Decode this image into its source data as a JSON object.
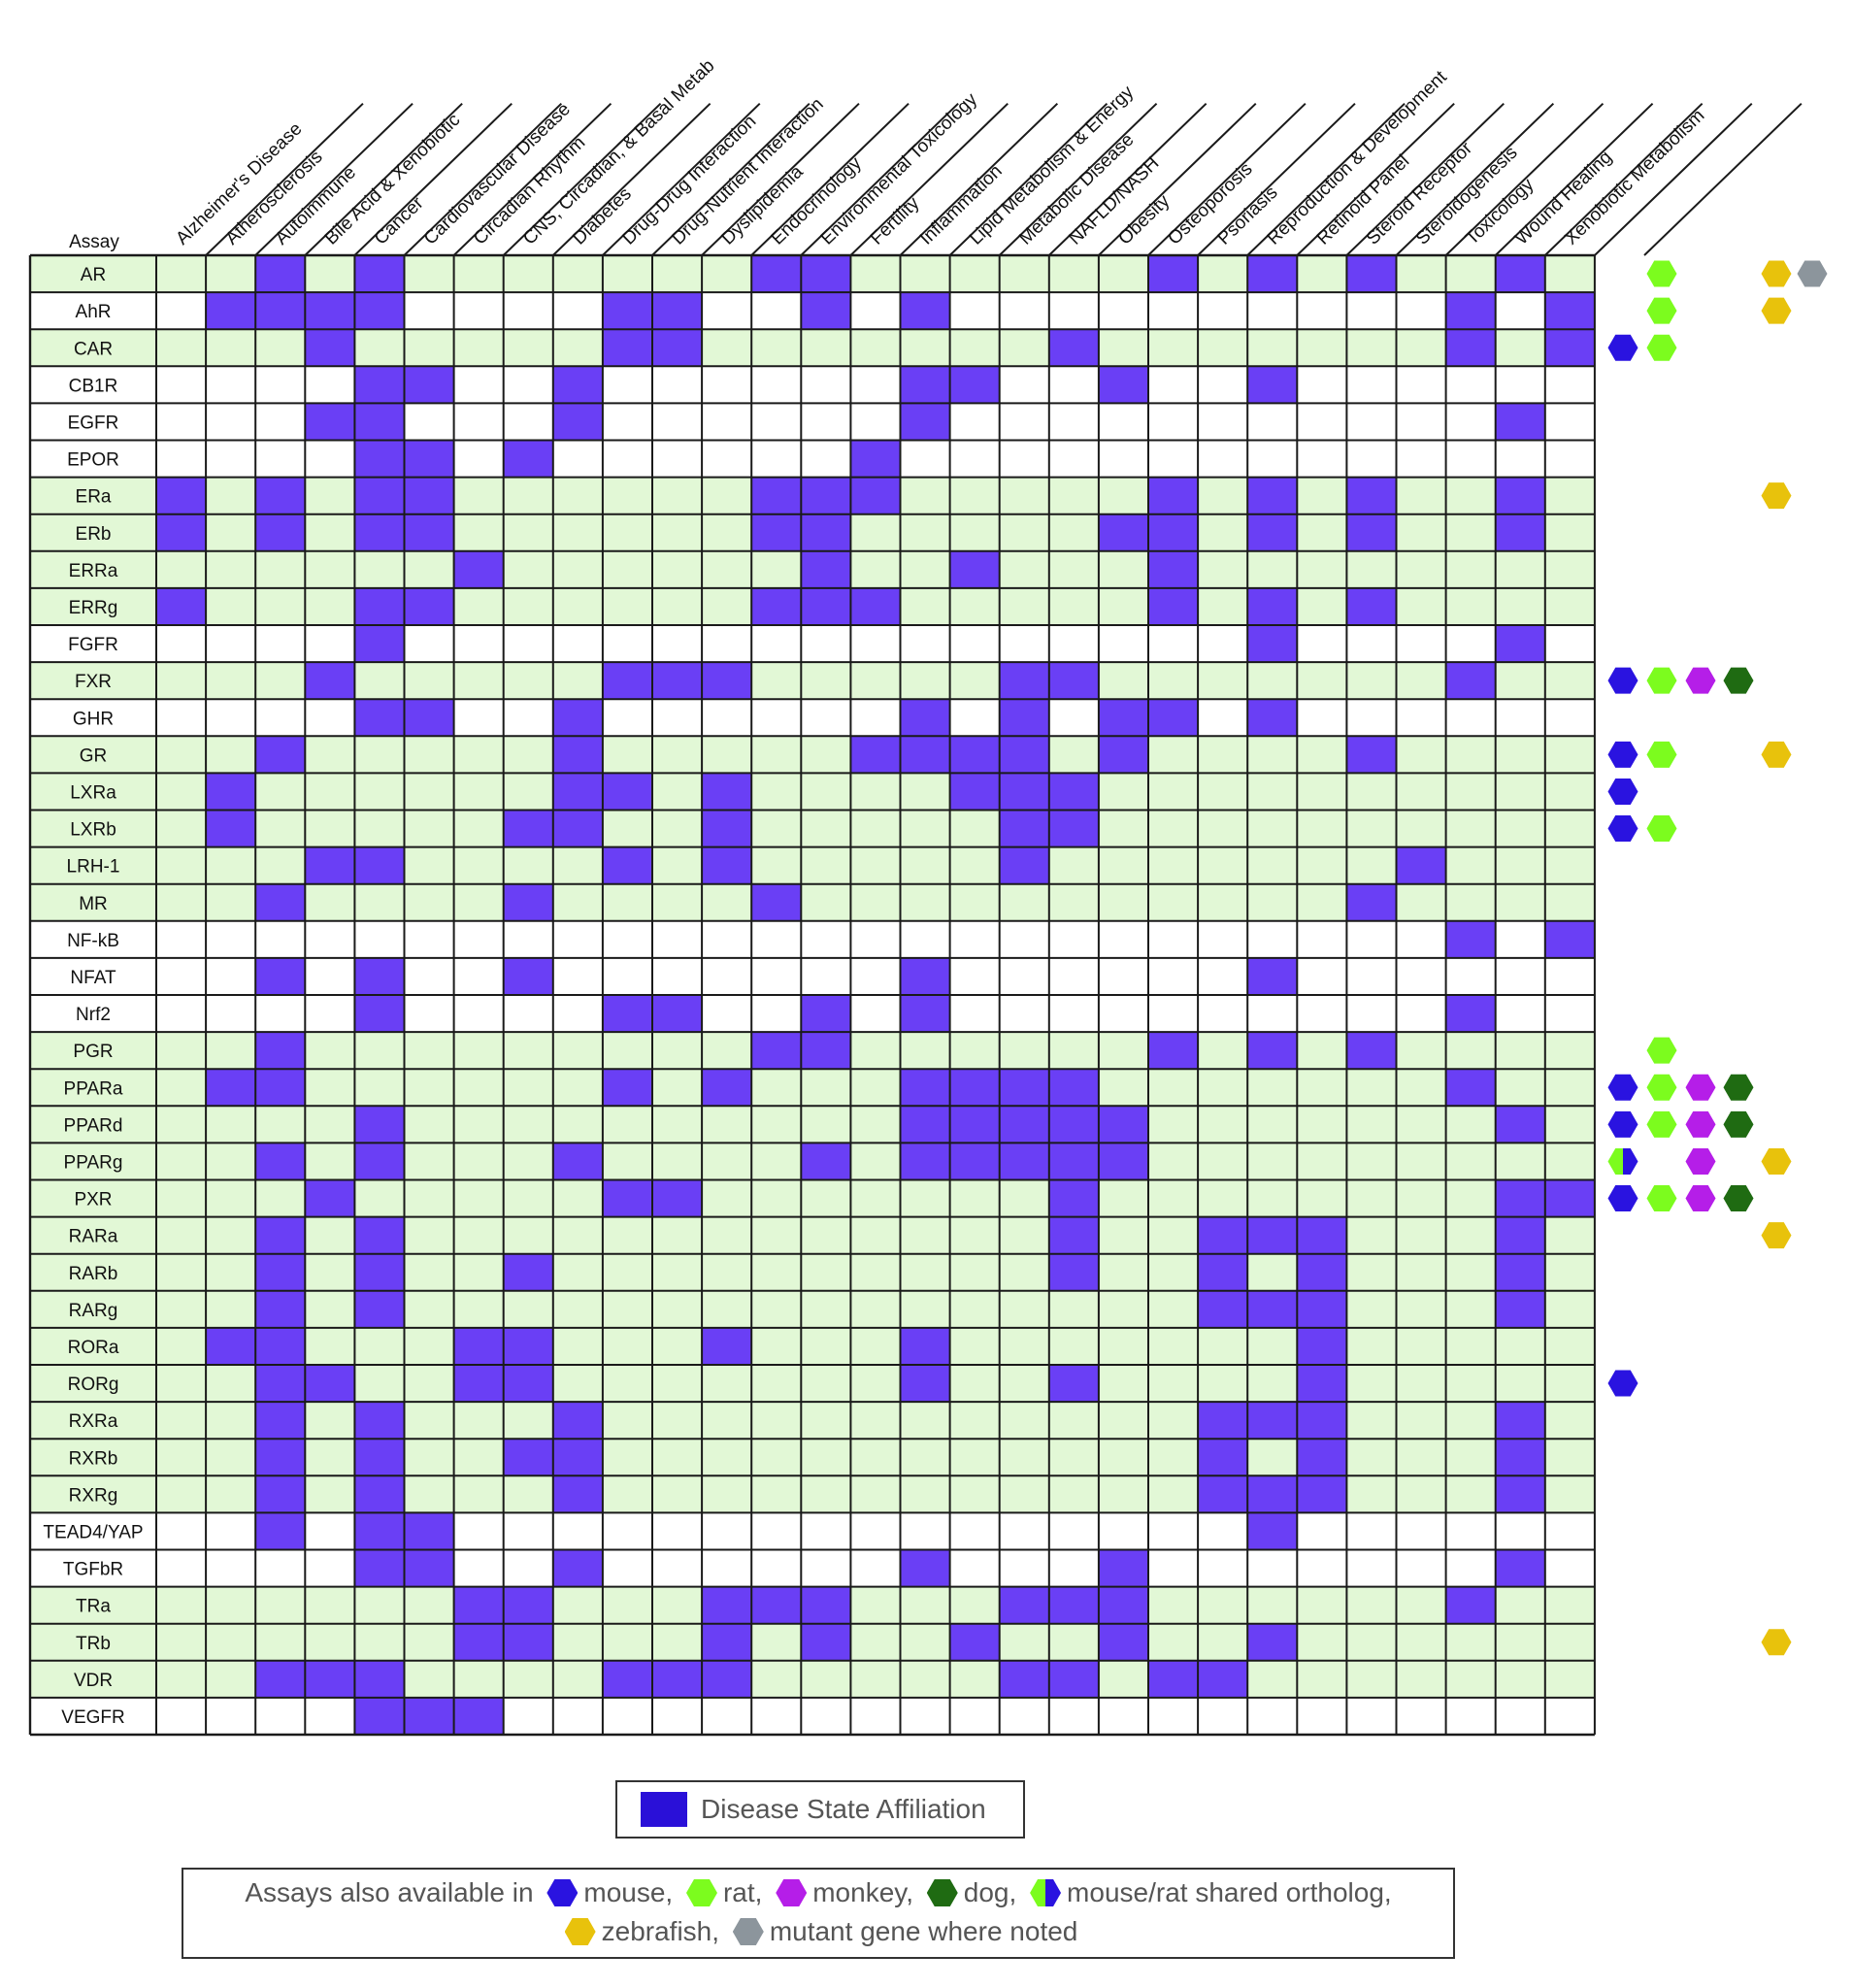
{
  "chart_data": {
    "type": "heatmap",
    "corner_label": "Assay",
    "columns": [
      "Alzheimer's Disease",
      "Atherosclerosis",
      "Autoimmune",
      "Bile Acid & Xenobiotic",
      "Cancer",
      "Cardiovascular Disease",
      "Circadian Rhythm",
      "CNS, Circadian, & Basal Metab",
      "Diabetes",
      "Drug-Drug Interaction",
      "Drug-Nutrient Interaction",
      "Dyslipidemia",
      "Endocrinology",
      "Environmental Toxicology",
      "Fertility",
      "Inflammation",
      "Lipid Metabolism & Energy",
      "Metabolic Disease",
      "NAFLD/NASH",
      "Obesity",
      "Osteoporosis",
      "Psoriasis",
      "Reproduction & Development",
      "Retinoid Panel",
      "Steroid Receptor",
      "Steroidogenesis",
      "Toxicology",
      "Wound Healing",
      "Xenobiotic Metabolism"
    ],
    "rows": [
      "AR",
      "AhR",
      "CAR",
      "CB1R",
      "EGFR",
      "EPOR",
      "ERa",
      "ERb",
      "ERRa",
      "ERRg",
      "FGFR",
      "FXR",
      "GHR",
      "GR",
      "LXRa",
      "LXRb",
      "LRH-1",
      "MR",
      "NF-kB",
      "NFAT",
      "Nrf2",
      "PGR",
      "PPARa",
      "PPARd",
      "PPARg",
      "PXR",
      "RARa",
      "RARb",
      "RARg",
      "RORa",
      "RORg",
      "RXRa",
      "RXRb",
      "RXRg",
      "TEAD4/YAP",
      "TGFbR",
      "TRa",
      "TRb",
      "VDR",
      "VEGFR"
    ],
    "row_shading": [
      "green",
      "white",
      "green",
      "white",
      "white",
      "white",
      "green",
      "green",
      "green",
      "green",
      "white",
      "green",
      "white",
      "green",
      "green",
      "green",
      "green",
      "green",
      "white",
      "white",
      "white",
      "green",
      "green",
      "green",
      "green",
      "green",
      "green",
      "green",
      "green",
      "green",
      "green",
      "green",
      "green",
      "green",
      "white",
      "white",
      "green",
      "green",
      "green",
      "white"
    ],
    "affiliation": [
      [
        0,
        0,
        1,
        0,
        1,
        0,
        0,
        0,
        0,
        0,
        0,
        0,
        1,
        1,
        0,
        0,
        0,
        0,
        0,
        0,
        1,
        0,
        1,
        0,
        1,
        0,
        0,
        1,
        0
      ],
      [
        0,
        1,
        1,
        1,
        1,
        0,
        0,
        0,
        0,
        1,
        1,
        0,
        0,
        1,
        0,
        1,
        0,
        0,
        0,
        0,
        0,
        0,
        0,
        0,
        0,
        0,
        1,
        0,
        1
      ],
      [
        0,
        0,
        0,
        1,
        0,
        0,
        0,
        0,
        0,
        1,
        1,
        0,
        0,
        0,
        0,
        0,
        0,
        0,
        1,
        0,
        0,
        0,
        0,
        0,
        0,
        0,
        1,
        0,
        1
      ],
      [
        0,
        0,
        0,
        0,
        1,
        1,
        0,
        0,
        1,
        0,
        0,
        0,
        0,
        0,
        0,
        1,
        1,
        0,
        0,
        1,
        0,
        0,
        1,
        0,
        0,
        0,
        0,
        0,
        0
      ],
      [
        0,
        0,
        0,
        1,
        1,
        0,
        0,
        0,
        1,
        0,
        0,
        0,
        0,
        0,
        0,
        1,
        0,
        0,
        0,
        0,
        0,
        0,
        0,
        0,
        0,
        0,
        0,
        1,
        0
      ],
      [
        0,
        0,
        0,
        0,
        1,
        1,
        0,
        1,
        0,
        0,
        0,
        0,
        0,
        0,
        1,
        0,
        0,
        0,
        0,
        0,
        0,
        0,
        0,
        0,
        0,
        0,
        0,
        0,
        0
      ],
      [
        1,
        0,
        1,
        0,
        1,
        1,
        0,
        0,
        0,
        0,
        0,
        0,
        1,
        1,
        1,
        0,
        0,
        0,
        0,
        0,
        1,
        0,
        1,
        0,
        1,
        0,
        0,
        1,
        0
      ],
      [
        1,
        0,
        1,
        0,
        1,
        1,
        0,
        0,
        0,
        0,
        0,
        0,
        1,
        1,
        0,
        0,
        0,
        0,
        0,
        1,
        1,
        0,
        1,
        0,
        1,
        0,
        0,
        1,
        0
      ],
      [
        0,
        0,
        0,
        0,
        0,
        0,
        1,
        0,
        0,
        0,
        0,
        0,
        0,
        1,
        0,
        0,
        1,
        0,
        0,
        0,
        1,
        0,
        0,
        0,
        0,
        0,
        0,
        0,
        0
      ],
      [
        1,
        0,
        0,
        0,
        1,
        1,
        0,
        0,
        0,
        0,
        0,
        0,
        1,
        1,
        1,
        0,
        0,
        0,
        0,
        0,
        1,
        0,
        1,
        0,
        1,
        0,
        0,
        0,
        0
      ],
      [
        0,
        0,
        0,
        0,
        1,
        0,
        0,
        0,
        0,
        0,
        0,
        0,
        0,
        0,
        0,
        0,
        0,
        0,
        0,
        0,
        0,
        0,
        1,
        0,
        0,
        0,
        0,
        1,
        0
      ],
      [
        0,
        0,
        0,
        1,
        0,
        0,
        0,
        0,
        0,
        1,
        1,
        1,
        0,
        0,
        0,
        0,
        0,
        1,
        1,
        0,
        0,
        0,
        0,
        0,
        0,
        0,
        1,
        0,
        0
      ],
      [
        0,
        0,
        0,
        0,
        1,
        1,
        0,
        0,
        1,
        0,
        0,
        0,
        0,
        0,
        0,
        1,
        0,
        1,
        0,
        1,
        1,
        0,
        1,
        0,
        0,
        0,
        0,
        0,
        0
      ],
      [
        0,
        0,
        1,
        0,
        0,
        0,
        0,
        0,
        1,
        0,
        0,
        0,
        0,
        0,
        1,
        1,
        1,
        1,
        0,
        1,
        0,
        0,
        0,
        0,
        1,
        0,
        0,
        0,
        0
      ],
      [
        0,
        1,
        0,
        0,
        0,
        0,
        0,
        0,
        1,
        1,
        0,
        1,
        0,
        0,
        0,
        0,
        1,
        1,
        1,
        0,
        0,
        0,
        0,
        0,
        0,
        0,
        0,
        0,
        0
      ],
      [
        0,
        1,
        0,
        0,
        0,
        0,
        0,
        1,
        1,
        0,
        0,
        1,
        0,
        0,
        0,
        0,
        0,
        1,
        1,
        0,
        0,
        0,
        0,
        0,
        0,
        0,
        0,
        0,
        0
      ],
      [
        0,
        0,
        0,
        1,
        1,
        0,
        0,
        0,
        0,
        1,
        0,
        1,
        0,
        0,
        0,
        0,
        0,
        1,
        0,
        0,
        0,
        0,
        0,
        0,
        0,
        1,
        0,
        0,
        0
      ],
      [
        0,
        0,
        1,
        0,
        0,
        0,
        0,
        1,
        0,
        0,
        0,
        0,
        1,
        0,
        0,
        0,
        0,
        0,
        0,
        0,
        0,
        0,
        0,
        0,
        1,
        0,
        0,
        0,
        0
      ],
      [
        0,
        0,
        0,
        0,
        0,
        0,
        0,
        0,
        0,
        0,
        0,
        0,
        0,
        0,
        0,
        0,
        0,
        0,
        0,
        0,
        0,
        0,
        0,
        0,
        0,
        0,
        1,
        0,
        1
      ],
      [
        0,
        0,
        1,
        0,
        1,
        0,
        0,
        1,
        0,
        0,
        0,
        0,
        0,
        0,
        0,
        1,
        0,
        0,
        0,
        0,
        0,
        0,
        1,
        0,
        0,
        0,
        0,
        0,
        0
      ],
      [
        0,
        0,
        0,
        0,
        1,
        0,
        0,
        0,
        0,
        1,
        1,
        0,
        0,
        1,
        0,
        1,
        0,
        0,
        0,
        0,
        0,
        0,
        0,
        0,
        0,
        0,
        1,
        0,
        0
      ],
      [
        0,
        0,
        1,
        0,
        0,
        0,
        0,
        0,
        0,
        0,
        0,
        0,
        1,
        1,
        0,
        0,
        0,
        0,
        0,
        0,
        1,
        0,
        1,
        0,
        1,
        0,
        0,
        0,
        0
      ],
      [
        0,
        1,
        1,
        0,
        0,
        0,
        0,
        0,
        0,
        1,
        0,
        1,
        0,
        0,
        0,
        1,
        1,
        1,
        1,
        0,
        0,
        0,
        0,
        0,
        0,
        0,
        1,
        0,
        0
      ],
      [
        0,
        0,
        0,
        0,
        1,
        0,
        0,
        0,
        0,
        0,
        0,
        0,
        0,
        0,
        0,
        1,
        1,
        1,
        1,
        1,
        0,
        0,
        0,
        0,
        0,
        0,
        0,
        1,
        0
      ],
      [
        0,
        0,
        1,
        0,
        1,
        0,
        0,
        0,
        1,
        0,
        0,
        0,
        0,
        1,
        0,
        1,
        1,
        1,
        1,
        1,
        0,
        0,
        0,
        0,
        0,
        0,
        0,
        0,
        0
      ],
      [
        0,
        0,
        0,
        1,
        0,
        0,
        0,
        0,
        0,
        1,
        1,
        0,
        0,
        0,
        0,
        0,
        0,
        0,
        1,
        0,
        0,
        0,
        0,
        0,
        0,
        0,
        0,
        1,
        1
      ],
      [
        0,
        0,
        1,
        0,
        1,
        0,
        0,
        0,
        0,
        0,
        0,
        0,
        0,
        0,
        0,
        0,
        0,
        0,
        1,
        0,
        0,
        1,
        1,
        1,
        0,
        0,
        0,
        1,
        0
      ],
      [
        0,
        0,
        1,
        0,
        1,
        0,
        0,
        1,
        0,
        0,
        0,
        0,
        0,
        0,
        0,
        0,
        0,
        0,
        1,
        0,
        0,
        1,
        0,
        1,
        0,
        0,
        0,
        1,
        0
      ],
      [
        0,
        0,
        1,
        0,
        1,
        0,
        0,
        0,
        0,
        0,
        0,
        0,
        0,
        0,
        0,
        0,
        0,
        0,
        0,
        0,
        0,
        1,
        1,
        1,
        0,
        0,
        0,
        1,
        0
      ],
      [
        0,
        1,
        1,
        0,
        0,
        0,
        1,
        1,
        0,
        0,
        0,
        1,
        0,
        0,
        0,
        1,
        0,
        0,
        0,
        0,
        0,
        0,
        0,
        1,
        0,
        0,
        0,
        0,
        0
      ],
      [
        0,
        0,
        1,
        1,
        0,
        0,
        1,
        1,
        0,
        0,
        0,
        0,
        0,
        0,
        0,
        1,
        0,
        0,
        1,
        0,
        0,
        0,
        0,
        1,
        0,
        0,
        0,
        0,
        0
      ],
      [
        0,
        0,
        1,
        0,
        1,
        0,
        0,
        0,
        1,
        0,
        0,
        0,
        0,
        0,
        0,
        0,
        0,
        0,
        0,
        0,
        0,
        1,
        1,
        1,
        0,
        0,
        0,
        1,
        0
      ],
      [
        0,
        0,
        1,
        0,
        1,
        0,
        0,
        1,
        1,
        0,
        0,
        0,
        0,
        0,
        0,
        0,
        0,
        0,
        0,
        0,
        0,
        1,
        0,
        1,
        0,
        0,
        0,
        1,
        0
      ],
      [
        0,
        0,
        1,
        0,
        1,
        0,
        0,
        0,
        1,
        0,
        0,
        0,
        0,
        0,
        0,
        0,
        0,
        0,
        0,
        0,
        0,
        1,
        1,
        1,
        0,
        0,
        0,
        1,
        0
      ],
      [
        0,
        0,
        1,
        0,
        1,
        1,
        0,
        0,
        0,
        0,
        0,
        0,
        0,
        0,
        0,
        0,
        0,
        0,
        0,
        0,
        0,
        0,
        1,
        0,
        0,
        0,
        0,
        0,
        0
      ],
      [
        0,
        0,
        0,
        0,
        1,
        1,
        0,
        0,
        1,
        0,
        0,
        0,
        0,
        0,
        0,
        1,
        0,
        0,
        0,
        1,
        0,
        0,
        0,
        0,
        0,
        0,
        0,
        1,
        0
      ],
      [
        0,
        0,
        0,
        0,
        0,
        0,
        1,
        1,
        0,
        0,
        0,
        1,
        1,
        1,
        0,
        0,
        0,
        1,
        1,
        1,
        0,
        0,
        0,
        0,
        0,
        0,
        1,
        0,
        0
      ],
      [
        0,
        0,
        0,
        0,
        0,
        0,
        1,
        1,
        0,
        0,
        0,
        1,
        0,
        1,
        0,
        0,
        1,
        0,
        0,
        1,
        0,
        0,
        1,
        0,
        0,
        0,
        0,
        0,
        0
      ],
      [
        0,
        0,
        1,
        1,
        1,
        0,
        0,
        0,
        0,
        1,
        1,
        1,
        0,
        0,
        0,
        0,
        0,
        1,
        1,
        0,
        1,
        1,
        0,
        0,
        0,
        0,
        0,
        0,
        0
      ],
      [
        0,
        0,
        0,
        0,
        1,
        1,
        1,
        0,
        0,
        0,
        0,
        0,
        0,
        0,
        0,
        0,
        0,
        0,
        0,
        0,
        0,
        0,
        0,
        0,
        0,
        0,
        0,
        0,
        0
      ]
    ],
    "species_slots": [
      "mouse",
      "rat",
      "monkey",
      "dog",
      "zebrafish",
      "mutant"
    ],
    "species": {
      "AR": [
        "rat",
        "zebrafish",
        "mutant"
      ],
      "AhR": [
        "rat",
        "zebrafish"
      ],
      "CAR": [
        "mouse",
        "rat"
      ],
      "ERa": [
        "zebrafish"
      ],
      "FXR": [
        "mouse",
        "rat",
        "monkey",
        "dog"
      ],
      "GR": [
        "mouse",
        "rat",
        "zebrafish"
      ],
      "LXRa": [
        "mouse"
      ],
      "LXRb": [
        "mouse",
        "rat"
      ],
      "PGR": [
        "rat"
      ],
      "PPARa": [
        "mouse",
        "rat",
        "monkey",
        "dog"
      ],
      "PPARd": [
        "mouse",
        "rat",
        "monkey",
        "dog"
      ],
      "PPARg": [
        "mouse/rat",
        "monkey",
        "zebrafish"
      ],
      "PXR": [
        "mouse",
        "rat",
        "monkey",
        "dog"
      ],
      "RARa": [
        "zebrafish"
      ],
      "RORg": [
        "mouse"
      ],
      "TRb": [
        "zebrafish"
      ]
    }
  },
  "legend": {
    "affiliation_label": "Disease State Affiliation",
    "species_prefix": "Assays also available in",
    "mouse": "mouse,",
    "rat": "rat,",
    "monkey": "monkey,",
    "dog": "dog,",
    "mouse_rat": "mouse/rat shared ortholog,",
    "zebrafish": "zebrafish,",
    "mutant": "mutant gene where noted"
  },
  "colors": {
    "affiliation": "#6a3ff5",
    "green_row": "#e2f8d6",
    "white_row": "#ffffff",
    "grid": "#1a1a1a",
    "legend_swatch": "#2a10d8",
    "mouse": "#2a13e0",
    "rat": "#7cfc1e",
    "monkey": "#b51ee8",
    "dog": "#1f6b12",
    "zebrafish": "#e8c20c",
    "mutant": "#8c959c"
  }
}
